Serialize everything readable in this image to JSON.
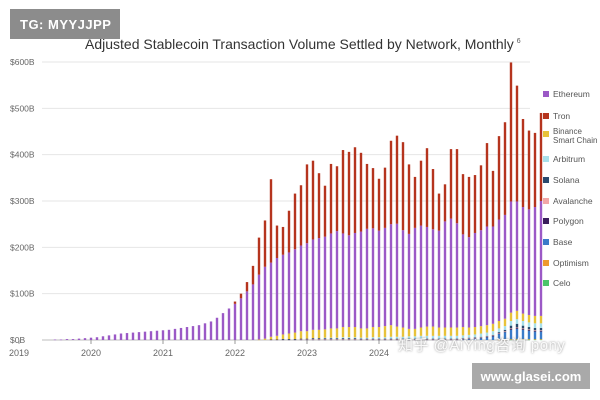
{
  "watermark_top": "TG: MYYJJPP",
  "watermark_cn": "知乎 @AiYing咨询 pony",
  "watermark_url": "www.glasei.com",
  "chart_data": {
    "type": "bar",
    "stacked": true,
    "title": "Adjusted Stablecoin Transaction Volume Settled by Network, Monthly",
    "title_footnote": "6",
    "xlabel": "",
    "ylabel": "",
    "yticks": [
      "$0B",
      "$100B",
      "$200B",
      "$300B",
      "$400B",
      "$500B",
      "$600B"
    ],
    "ylim": [
      0,
      600
    ],
    "xticks": [
      "2019",
      "2020",
      "2021",
      "2022",
      "2023",
      "2024"
    ],
    "x_start": "2019-01",
    "grid": true,
    "legend_position": "right",
    "series": [
      {
        "name": "Ethereum",
        "color": "#9b59c6",
        "values": [
          1,
          1,
          2,
          2,
          3,
          4,
          5,
          6,
          8,
          10,
          12,
          14,
          15,
          16,
          17,
          18,
          19,
          20,
          21,
          22,
          24,
          26,
          28,
          30,
          32,
          36,
          40,
          48,
          58,
          68,
          78,
          90,
          105,
          120,
          140,
          155,
          160,
          168,
          172,
          175,
          180,
          185,
          190,
          195,
          198,
          200,
          205,
          210,
          202,
          198,
          203,
          209,
          215,
          213,
          208,
          212,
          218,
          222,
          210,
          205,
          218,
          220,
          215,
          210,
          209,
          229,
          235,
          225,
          200,
          195,
          203,
          207,
          213,
          210,
          219,
          224,
          240,
          236,
          230,
          228,
          235,
          248
        ]
      },
      {
        "name": "Tron",
        "color": "#b5341e",
        "values": [
          0,
          0,
          0,
          0,
          0,
          0,
          0,
          0,
          0,
          0,
          0,
          0,
          0,
          0,
          0,
          0,
          0,
          0,
          0,
          0,
          0,
          0,
          0,
          0,
          0,
          0,
          0,
          0,
          0,
          0,
          5,
          10,
          20,
          40,
          80,
          100,
          180,
          70,
          60,
          90,
          120,
          130,
          170,
          170,
          140,
          110,
          150,
          140,
          180,
          180,
          185,
          170,
          140,
          130,
          112,
          130,
          180,
          190,
          190,
          150,
          110,
          140,
          170,
          130,
          80,
          80,
          150,
          160,
          130,
          130,
          125,
          140,
          180,
          120,
          180,
          200,
          300,
          250,
          190,
          170,
          160,
          190
        ]
      },
      {
        "name": "Binance Smart Chain",
        "color": "#e7c23a",
        "values": [
          0,
          0,
          0,
          0,
          0,
          0,
          0,
          0,
          0,
          0,
          0,
          0,
          0,
          0,
          0,
          0,
          0,
          0,
          0,
          0,
          0,
          0,
          0,
          0,
          0,
          0,
          0,
          0,
          0,
          0,
          0,
          0,
          0,
          0,
          1,
          3,
          6,
          8,
          10,
          12,
          14,
          16,
          16,
          18,
          18,
          18,
          20,
          20,
          22,
          22,
          22,
          20,
          20,
          22,
          22,
          24,
          25,
          22,
          20,
          16,
          16,
          18,
          20,
          20,
          18,
          18,
          18,
          18,
          18,
          16,
          16,
          16,
          16,
          16,
          16,
          16,
          18,
          18,
          16,
          16,
          16,
          16
        ]
      },
      {
        "name": "Arbitrum",
        "color": "#a8e0ea",
        "values": [
          0,
          0,
          0,
          0,
          0,
          0,
          0,
          0,
          0,
          0,
          0,
          0,
          0,
          0,
          0,
          0,
          0,
          0,
          0,
          0,
          0,
          0,
          0,
          0,
          0,
          0,
          0,
          0,
          0,
          0,
          0,
          0,
          0,
          0,
          0,
          0,
          0,
          0,
          0,
          0,
          0,
          0,
          0,
          0,
          0,
          1,
          1,
          1,
          2,
          2,
          2,
          2,
          2,
          3,
          3,
          3,
          4,
          4,
          4,
          5,
          5,
          6,
          6,
          6,
          6,
          6,
          6,
          6,
          6,
          6,
          6,
          7,
          7,
          8,
          8,
          8,
          10,
          10,
          10,
          10,
          10,
          10
        ]
      },
      {
        "name": "Solana",
        "color": "#2a4a6e",
        "values": [
          0,
          0,
          0,
          0,
          0,
          0,
          0,
          0,
          0,
          0,
          0,
          0,
          0,
          0,
          0,
          0,
          0,
          0,
          0,
          0,
          0,
          0,
          0,
          0,
          0,
          0,
          0,
          0,
          0,
          0,
          0,
          0,
          0,
          0,
          0,
          0,
          0,
          0,
          1,
          1,
          1,
          1,
          1,
          2,
          2,
          2,
          2,
          2,
          2,
          2,
          2,
          1,
          1,
          1,
          1,
          1,
          1,
          1,
          1,
          1,
          1,
          1,
          1,
          1,
          1,
          1,
          1,
          1,
          1,
          1,
          1,
          1,
          1,
          1,
          2,
          3,
          6,
          8,
          6,
          5,
          5,
          5
        ]
      },
      {
        "name": "Avalanche",
        "color": "#f2a7a7",
        "values": [
          0,
          0,
          0,
          0,
          0,
          0,
          0,
          0,
          0,
          0,
          0,
          0,
          0,
          0,
          0,
          0,
          0,
          0,
          0,
          0,
          0,
          0,
          0,
          0,
          0,
          0,
          0,
          0,
          0,
          0,
          0,
          0,
          0,
          0,
          0,
          0,
          0,
          0,
          0,
          0,
          0,
          1,
          1,
          1,
          1,
          1,
          1,
          1,
          1,
          1,
          1,
          1,
          1,
          1,
          1,
          1,
          1,
          1,
          1,
          1,
          1,
          1,
          1,
          1,
          1,
          1,
          1,
          1,
          1,
          1,
          1,
          1,
          1,
          1,
          1,
          1,
          1,
          1,
          1,
          1,
          1,
          1
        ]
      },
      {
        "name": "Polygon",
        "color": "#3a1f5c",
        "values": [
          0,
          0,
          0,
          0,
          0,
          0,
          0,
          0,
          0,
          0,
          0,
          0,
          0,
          0,
          0,
          0,
          0,
          0,
          0,
          0,
          0,
          0,
          0,
          0,
          0,
          0,
          0,
          0,
          0,
          0,
          0,
          0,
          0,
          0,
          0,
          0,
          1,
          1,
          1,
          1,
          1,
          1,
          1,
          1,
          1,
          1,
          1,
          1,
          1,
          1,
          1,
          1,
          1,
          1,
          1,
          1,
          1,
          1,
          1,
          1,
          1,
          1,
          1,
          1,
          1,
          1,
          1,
          1,
          1,
          1,
          1,
          1,
          1,
          1,
          1,
          1,
          2,
          2,
          2,
          2,
          2,
          2
        ]
      },
      {
        "name": "Base",
        "color": "#3a7bc8",
        "values": [
          0,
          0,
          0,
          0,
          0,
          0,
          0,
          0,
          0,
          0,
          0,
          0,
          0,
          0,
          0,
          0,
          0,
          0,
          0,
          0,
          0,
          0,
          0,
          0,
          0,
          0,
          0,
          0,
          0,
          0,
          0,
          0,
          0,
          0,
          0,
          0,
          0,
          0,
          0,
          0,
          0,
          0,
          0,
          0,
          0,
          0,
          0,
          0,
          0,
          0,
          0,
          0,
          0,
          0,
          0,
          0,
          0,
          0,
          0,
          0,
          0,
          0,
          0,
          0,
          0,
          0,
          0,
          0,
          1,
          2,
          3,
          4,
          6,
          8,
          12,
          16,
          20,
          22,
          20,
          18,
          16,
          16
        ]
      },
      {
        "name": "Optimism",
        "color": "#ee9a2e",
        "values": [
          0,
          0,
          0,
          0,
          0,
          0,
          0,
          0,
          0,
          0,
          0,
          0,
          0,
          0,
          0,
          0,
          0,
          0,
          0,
          0,
          0,
          0,
          0,
          0,
          0,
          0,
          0,
          0,
          0,
          0,
          0,
          0,
          0,
          0,
          0,
          0,
          0,
          0,
          0,
          0,
          0,
          0,
          0,
          0,
          0,
          0,
          0,
          0,
          0,
          0,
          0,
          0,
          0,
          0,
          0,
          0,
          0,
          0,
          0,
          0,
          0,
          0,
          0,
          0,
          0,
          0,
          0,
          0,
          0,
          0,
          0,
          0,
          0,
          0,
          1,
          1,
          1,
          1,
          1,
          1,
          1,
          1
        ]
      },
      {
        "name": "Celo",
        "color": "#4cc46a",
        "values": [
          0,
          0,
          0,
          0,
          0,
          0,
          0,
          0,
          0,
          0,
          0,
          0,
          0,
          0,
          0,
          0,
          0,
          0,
          0,
          0,
          0,
          0,
          0,
          0,
          0,
          0,
          0,
          0,
          0,
          0,
          0,
          0,
          0,
          0,
          0,
          0,
          0,
          0,
          0,
          0,
          0,
          0,
          0,
          0,
          0,
          0,
          0,
          0,
          0,
          0,
          0,
          0,
          0,
          0,
          0,
          0,
          0,
          0,
          0,
          0,
          0,
          0,
          0,
          0,
          0,
          0,
          0,
          0,
          0,
          0,
          0,
          0,
          0,
          0,
          0,
          0,
          1,
          1,
          1,
          1,
          1,
          1
        ]
      }
    ]
  }
}
